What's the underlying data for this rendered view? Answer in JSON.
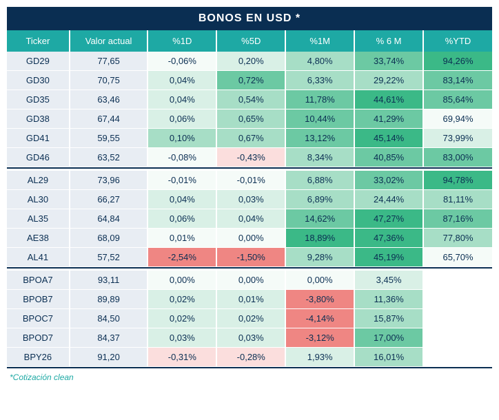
{
  "title": "BONOS EN USD *",
  "footnote": "*Cotización clean",
  "columns": [
    "Ticker",
    "Valor actual",
    "%1D",
    "%5D",
    "%1M",
    "% 6 M",
    "%YTD"
  ],
  "colors": {
    "title_bg": "#0a2e52",
    "header_bg": "#1ea9a4",
    "ticker_bg": "#e8edf3",
    "text_dark": "#0a2e52",
    "accent": "#1ea9a4"
  },
  "heat_scale": {
    "neg_strong": "#ef8683",
    "neg_mid": "#f6b8b5",
    "neg_weak": "#fbdedd",
    "flat": "#f5fbf8",
    "pos_weak": "#d9f0e6",
    "pos_mid": "#a7dec6",
    "pos_strong": "#6cc9a3",
    "pos_max": "#3bb987"
  },
  "groups": [
    {
      "rows": [
        {
          "ticker": "GD29",
          "valor": "77,65",
          "pcts": [
            {
              "v": "-0,06%",
              "h": "flat"
            },
            {
              "v": "0,20%",
              "h": "pos_weak"
            },
            {
              "v": "4,80%",
              "h": "pos_mid"
            },
            {
              "v": "33,74%",
              "h": "pos_strong"
            },
            {
              "v": "94,26%",
              "h": "pos_max"
            }
          ]
        },
        {
          "ticker": "GD30",
          "valor": "70,75",
          "pcts": [
            {
              "v": "0,04%",
              "h": "pos_weak"
            },
            {
              "v": "0,72%",
              "h": "pos_strong"
            },
            {
              "v": "6,33%",
              "h": "pos_mid"
            },
            {
              "v": "29,22%",
              "h": "pos_mid"
            },
            {
              "v": "83,14%",
              "h": "pos_strong"
            }
          ]
        },
        {
          "ticker": "GD35",
          "valor": "63,46",
          "pcts": [
            {
              "v": "0,04%",
              "h": "pos_weak"
            },
            {
              "v": "0,54%",
              "h": "pos_mid"
            },
            {
              "v": "11,78%",
              "h": "pos_strong"
            },
            {
              "v": "44,61%",
              "h": "pos_max"
            },
            {
              "v": "85,64%",
              "h": "pos_strong"
            }
          ]
        },
        {
          "ticker": "GD38",
          "valor": "67,44",
          "pcts": [
            {
              "v": "0,06%",
              "h": "pos_weak"
            },
            {
              "v": "0,65%",
              "h": "pos_mid"
            },
            {
              "v": "10,44%",
              "h": "pos_strong"
            },
            {
              "v": "41,29%",
              "h": "pos_strong"
            },
            {
              "v": "69,94%",
              "h": "flat"
            }
          ]
        },
        {
          "ticker": "GD41",
          "valor": "59,55",
          "pcts": [
            {
              "v": "0,10%",
              "h": "pos_mid"
            },
            {
              "v": "0,67%",
              "h": "pos_mid"
            },
            {
              "v": "13,12%",
              "h": "pos_strong"
            },
            {
              "v": "45,14%",
              "h": "pos_max"
            },
            {
              "v": "73,99%",
              "h": "pos_weak"
            }
          ]
        },
        {
          "ticker": "GD46",
          "valor": "63,52",
          "pcts": [
            {
              "v": "-0,08%",
              "h": "flat"
            },
            {
              "v": "-0,43%",
              "h": "neg_weak"
            },
            {
              "v": "8,34%",
              "h": "pos_mid"
            },
            {
              "v": "40,85%",
              "h": "pos_strong"
            },
            {
              "v": "83,00%",
              "h": "pos_strong"
            }
          ]
        }
      ]
    },
    {
      "rows": [
        {
          "ticker": "AL29",
          "valor": "73,96",
          "pcts": [
            {
              "v": "-0,01%",
              "h": "flat"
            },
            {
              "v": "-0,01%",
              "h": "flat"
            },
            {
              "v": "6,88%",
              "h": "pos_mid"
            },
            {
              "v": "33,02%",
              "h": "pos_strong"
            },
            {
              "v": "94,78%",
              "h": "pos_max"
            }
          ]
        },
        {
          "ticker": "AL30",
          "valor": "66,27",
          "pcts": [
            {
              "v": "0,04%",
              "h": "pos_weak"
            },
            {
              "v": "0,03%",
              "h": "pos_weak"
            },
            {
              "v": "6,89%",
              "h": "pos_mid"
            },
            {
              "v": "24,44%",
              "h": "pos_mid"
            },
            {
              "v": "81,11%",
              "h": "pos_mid"
            }
          ]
        },
        {
          "ticker": "AL35",
          "valor": "64,84",
          "pcts": [
            {
              "v": "0,06%",
              "h": "pos_weak"
            },
            {
              "v": "0,04%",
              "h": "pos_weak"
            },
            {
              "v": "14,62%",
              "h": "pos_strong"
            },
            {
              "v": "47,27%",
              "h": "pos_max"
            },
            {
              "v": "87,16%",
              "h": "pos_strong"
            }
          ]
        },
        {
          "ticker": "AE38",
          "valor": "68,09",
          "pcts": [
            {
              "v": "0,01%",
              "h": "flat"
            },
            {
              "v": "0,00%",
              "h": "flat"
            },
            {
              "v": "18,89%",
              "h": "pos_max"
            },
            {
              "v": "47,36%",
              "h": "pos_max"
            },
            {
              "v": "77,80%",
              "h": "pos_mid"
            }
          ]
        },
        {
          "ticker": "AL41",
          "valor": "57,52",
          "pcts": [
            {
              "v": "-2,54%",
              "h": "neg_strong"
            },
            {
              "v": "-1,50%",
              "h": "neg_strong"
            },
            {
              "v": "9,28%",
              "h": "pos_mid"
            },
            {
              "v": "45,19%",
              "h": "pos_max"
            },
            {
              "v": "65,70%",
              "h": "flat"
            }
          ]
        }
      ]
    },
    {
      "rows": [
        {
          "ticker": "BPOA7",
          "valor": "93,11",
          "pcts": [
            {
              "v": "0,00%",
              "h": "flat"
            },
            {
              "v": "0,00%",
              "h": "flat"
            },
            {
              "v": "0,00%",
              "h": "flat"
            },
            {
              "v": "3,45%",
              "h": "pos_weak"
            },
            {
              "v": "",
              "h": ""
            }
          ]
        },
        {
          "ticker": "BPOB7",
          "valor": "89,89",
          "pcts": [
            {
              "v": "0,02%",
              "h": "pos_weak"
            },
            {
              "v": "0,01%",
              "h": "pos_weak"
            },
            {
              "v": "-3,80%",
              "h": "neg_strong"
            },
            {
              "v": "11,36%",
              "h": "pos_mid"
            },
            {
              "v": "",
              "h": ""
            }
          ]
        },
        {
          "ticker": "BPOC7",
          "valor": "84,50",
          "pcts": [
            {
              "v": "0,02%",
              "h": "pos_weak"
            },
            {
              "v": "0,02%",
              "h": "pos_weak"
            },
            {
              "v": "-4,14%",
              "h": "neg_strong"
            },
            {
              "v": "15,87%",
              "h": "pos_mid"
            },
            {
              "v": "",
              "h": ""
            }
          ]
        },
        {
          "ticker": "BPOD7",
          "valor": "84,37",
          "pcts": [
            {
              "v": "0,03%",
              "h": "pos_weak"
            },
            {
              "v": "0,03%",
              "h": "pos_weak"
            },
            {
              "v": "-3,12%",
              "h": "neg_strong"
            },
            {
              "v": "17,00%",
              "h": "pos_strong"
            },
            {
              "v": "",
              "h": ""
            }
          ]
        },
        {
          "ticker": "BPY26",
          "valor": "91,20",
          "pcts": [
            {
              "v": "-0,31%",
              "h": "neg_weak"
            },
            {
              "v": "-0,28%",
              "h": "neg_weak"
            },
            {
              "v": "1,93%",
              "h": "pos_weak"
            },
            {
              "v": "16,01%",
              "h": "pos_mid"
            },
            {
              "v": "",
              "h": ""
            }
          ]
        }
      ]
    }
  ]
}
